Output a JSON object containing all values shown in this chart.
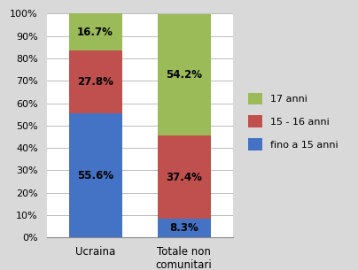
{
  "categories": [
    "Ucraina",
    "Totale non\ncomunitari"
  ],
  "series": {
    "fino a 15 anni": [
      55.6,
      8.3
    ],
    "15 - 16 anni": [
      27.8,
      37.4
    ],
    "17 anni": [
      16.7,
      54.2
    ]
  },
  "colors": {
    "fino a 15 anni": "#4472C4",
    "15 - 16 anni": "#C0504D",
    "17 anni": "#9BBB59"
  },
  "labels": {
    "fino a 15 anni": [
      "55.6%",
      "8.3%"
    ],
    "15 - 16 anni": [
      "27.8%",
      "37.4%"
    ],
    "17 anni": [
      "16.7%",
      "54.2%"
    ]
  },
  "ylim": [
    0,
    100
  ],
  "yticks": [
    0,
    10,
    20,
    30,
    40,
    50,
    60,
    70,
    80,
    90,
    100
  ],
  "ytick_labels": [
    "0%",
    "10%",
    "20%",
    "30%",
    "40%",
    "50%",
    "60%",
    "70%",
    "80%",
    "90%",
    "100%"
  ],
  "background_color": "#D9D9D9",
  "plot_bg_color": "#FFFFFF",
  "bar_width": 0.6,
  "legend_order": [
    "17 anni",
    "15 - 16 anni",
    "fino a 15 anni"
  ],
  "label_fontsize": 8.5,
  "tick_fontsize": 8,
  "xtick_fontsize": 8.5
}
